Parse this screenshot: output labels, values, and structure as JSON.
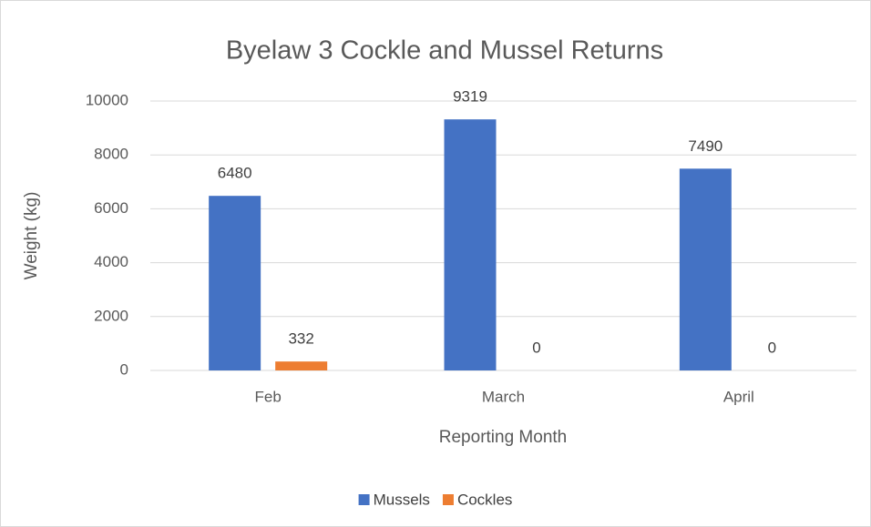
{
  "chart_data": {
    "type": "bar",
    "title": "Byelaw 3 Cockle and Mussel Returns",
    "x_label": "Reporting Month",
    "y_label": "Weight (kg)",
    "categories": [
      "Feb",
      "March",
      "April"
    ],
    "series": [
      {
        "name": "Mussels",
        "color": "#4472c4",
        "values": [
          6480,
          9319,
          7490
        ]
      },
      {
        "name": "Cockles",
        "color": "#ed7d31",
        "values": [
          332,
          0,
          0
        ]
      }
    ],
    "ylim": [
      0,
      10000
    ],
    "yticks": [
      0,
      2000,
      4000,
      6000,
      8000,
      10000
    ],
    "grid": true,
    "legend": "bottom"
  }
}
